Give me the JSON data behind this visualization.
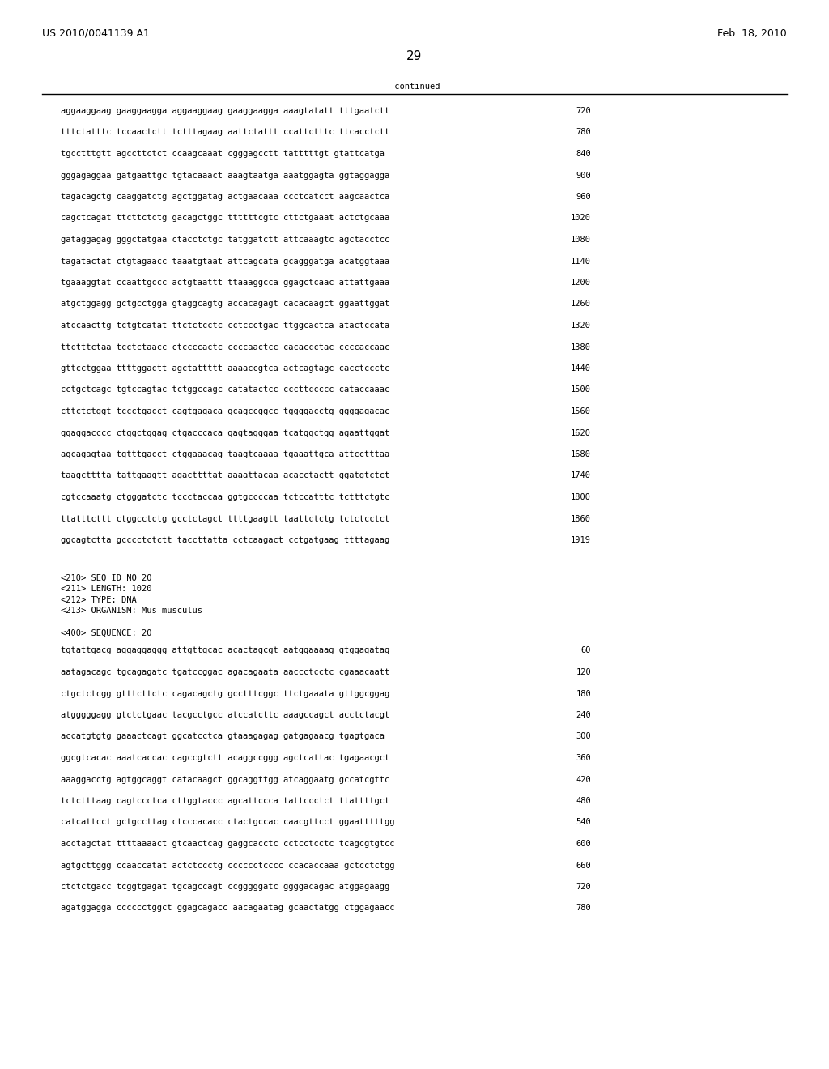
{
  "page_left": "US 2010/0041139 A1",
  "page_right": "Feb. 18, 2010",
  "page_number": "29",
  "continued_label": "-continued",
  "background_color": "#ffffff",
  "text_color": "#000000",
  "font_size_main": 7.5,
  "font_size_header": 9.0,
  "font_size_page": 11.0,
  "sequence_lines_top": [
    [
      "aggaaggaag gaaggaagga aggaaggaag gaaggaagga aaagtatatt tttgaatctt",
      "720"
    ],
    [
      "tttctatttc tccaactctt tctttagaag aattctattt ccattctttc ttcacctctt",
      "780"
    ],
    [
      "tgcctttgtt agccttctct ccaagcaaat cgggagcctt tatttttgt gtattcatga",
      "840"
    ],
    [
      "gggagaggaa gatgaattgc tgtacaaact aaagtaatga aaatggagta ggtaggagga",
      "900"
    ],
    [
      "tagacagctg caaggatctg agctggatag actgaacaaa ccctcatcct aagcaactca",
      "960"
    ],
    [
      "cagctcagat ttcttctctg gacagctggc ttttttcgtc cttctgaaat actctgcaaa",
      "1020"
    ],
    [
      "gataggagag gggctatgaa ctacctctgc tatggatctt attcaaagtc agctacctcc",
      "1080"
    ],
    [
      "tagatactat ctgtagaacc taaatgtaat attcagcata gcagggatga acatggtaaa",
      "1140"
    ],
    [
      "tgaaaggtat ccaattgccc actgtaattt ttaaaggcca ggagctcaac attattgaaa",
      "1200"
    ],
    [
      "atgctggagg gctgcctgga gtaggcagtg accacagagt cacacaagct ggaattggat",
      "1260"
    ],
    [
      "atccaacttg tctgtcatat ttctctcctc cctccctgac ttggcactca atactccata",
      "1320"
    ],
    [
      "ttctttctaa tcctctaacc ctccccactc ccccaactcc cacaccctac ccccaccaac",
      "1380"
    ],
    [
      "gttcctggaa ttttggactt agctattttt aaaaccgtca actcagtagc cacctccctc",
      "1440"
    ],
    [
      "cctgctcagc tgtccagtac tctggccagc catatactcc cccttccccc cataccaaac",
      "1500"
    ],
    [
      "cttctctggt tccctgacct cagtgagaca gcagccggcc tggggacctg ggggagacac",
      "1560"
    ],
    [
      "ggaggacccc ctggctggag ctgacccaca gagtagggaa tcatggctgg agaattggat",
      "1620"
    ],
    [
      "agcagagtaa tgtttgacct ctggaaacag taagtcaaaa tgaaattgca attcctttaa",
      "1680"
    ],
    [
      "taagctttta tattgaagtt agacttttat aaaattacaa acacctactt ggatgtctct",
      "1740"
    ],
    [
      "cgtccaaatg ctgggatctc tccctaccaa ggtgccccaa tctccatttc tctttctgtc",
      "1800"
    ],
    [
      "ttatttcttt ctggcctctg gcctctagct ttttgaagtt taattctctg tctctcctct",
      "1860"
    ],
    [
      "ggcagtctta gcccctctctt taccttatta cctcaagact cctgatgaag ttttagaag",
      "1919"
    ]
  ],
  "metadata_lines": [
    "<210> SEQ ID NO 20",
    "<211> LENGTH: 1020",
    "<212> TYPE: DNA",
    "<213> ORGANISM: Mus musculus"
  ],
  "seq400_label": "<400> SEQUENCE: 20",
  "sequence_lines_bottom": [
    [
      "tgtattgacg aggaggaggg attgttgcac acactagcgt aatggaaaag gtggagatag",
      "60"
    ],
    [
      "aatagacagc tgcagagatc tgatccggac agacagaata aaccctcctc cgaaacaatt",
      "120"
    ],
    [
      "ctgctctcgg gtttcttctc cagacagctg gcctttcggc ttctgaaata gttggcggag",
      "180"
    ],
    [
      "atgggggagg gtctctgaac tacgcctgcc atccatcttc aaagccagct acctctacgt",
      "240"
    ],
    [
      "accatgtgtg gaaactcagt ggcatcctca gtaaagagag gatgagaacg tgagtgaca",
      "300"
    ],
    [
      "ggcgtcacac aaatcaccac cagccgtctt acaggccggg agctcattac tgagaacgct",
      "360"
    ],
    [
      "aaaggacctg agtggcaggt catacaagct ggcaggttgg atcaggaatg gccatcgttc",
      "420"
    ],
    [
      "tctctttaag cagtccctca cttggtaccc agcattccca tattccctct ttattttgct",
      "480"
    ],
    [
      "catcattcct gctgccttag ctcccacacc ctactgccac caacgttcct ggaatttttgg",
      "540"
    ],
    [
      "acctagctat ttttaaaact gtcaactcag gaggcacctc cctcctcctc tcagcgtgtcc",
      "600"
    ],
    [
      "agtgcttggg ccaaccatat actctccctg cccccctcccc ccacaccaaa gctcctctgg",
      "660"
    ],
    [
      "ctctctgacc tcggtgagat tgcagccagt ccgggggatc ggggacagac atggagaagg",
      "720"
    ],
    [
      "agatggagga cccccctggct ggagcagacc aacagaatag gcaactatgg ctggagaacc",
      "780"
    ]
  ]
}
